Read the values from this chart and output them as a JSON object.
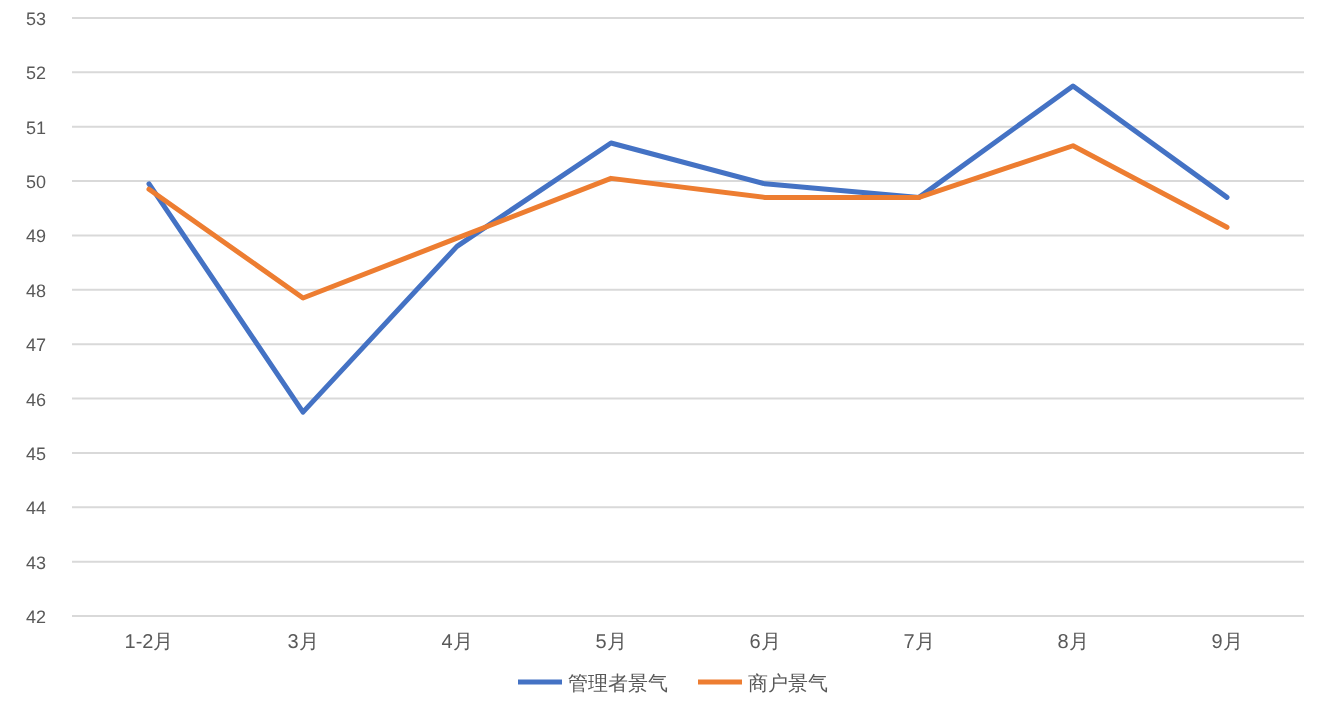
{
  "chart_data": {
    "type": "line",
    "categories": [
      "1-2月",
      "3月",
      "4月",
      "5月",
      "6月",
      "7月",
      "8月",
      "9月"
    ],
    "series": [
      {
        "name": "管理者景气",
        "color": "#4472c4",
        "values": [
          49.95,
          45.75,
          48.8,
          50.7,
          49.95,
          49.7,
          51.75,
          49.7
        ]
      },
      {
        "name": "商户景气",
        "color": "#ed7d31",
        "values": [
          49.85,
          47.85,
          48.95,
          50.05,
          49.7,
          49.7,
          50.65,
          49.15
        ]
      }
    ],
    "ylim": [
      42,
      53
    ],
    "yticks": [
      42,
      43,
      44,
      45,
      46,
      47,
      48,
      49,
      50,
      51,
      52,
      53
    ],
    "grid": "y",
    "legend": "bottom",
    "marker": "none",
    "line_style": "solid"
  }
}
